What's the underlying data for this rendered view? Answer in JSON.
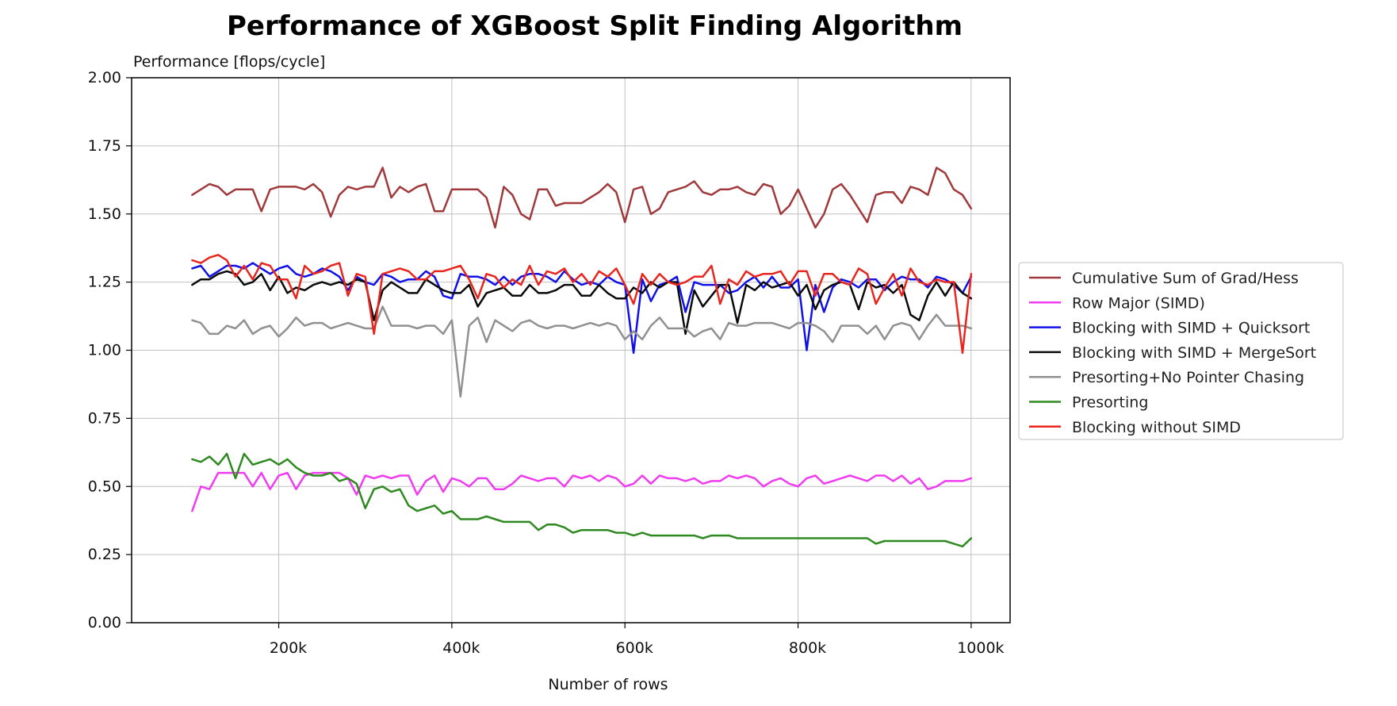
{
  "chart_data": {
    "type": "line",
    "title": "Performance of XGBoost Split Finding Algorithm",
    "ylabel": "Performance [flops/cycle]",
    "xlabel": "Number of rows",
    "xlim": [
      30000,
      1045000
    ],
    "ylim": [
      0,
      2
    ],
    "x_ticks": [
      200000,
      400000,
      600000,
      800000,
      1000000
    ],
    "x_tick_labels": [
      "200k",
      "400k",
      "600k",
      "800k",
      "1000k"
    ],
    "y_ticks": [
      0,
      0.25,
      0.5,
      0.75,
      1.0,
      1.25,
      1.5,
      1.75,
      2.0
    ],
    "y_tick_labels": [
      "0.00",
      "0.25",
      "0.50",
      "0.75",
      "1.00",
      "1.25",
      "1.50",
      "1.75",
      "2.00"
    ],
    "grid": true,
    "legend_position": "right",
    "x": [
      100000,
      110000,
      120000,
      130000,
      140000,
      150000,
      160000,
      170000,
      180000,
      190000,
      200000,
      210000,
      220000,
      230000,
      240000,
      250000,
      260000,
      270000,
      280000,
      290000,
      300000,
      310000,
      320000,
      330000,
      340000,
      350000,
      360000,
      370000,
      380000,
      390000,
      400000,
      410000,
      420000,
      430000,
      440000,
      450000,
      460000,
      470000,
      480000,
      490000,
      500000,
      510000,
      520000,
      530000,
      540000,
      550000,
      560000,
      570000,
      580000,
      590000,
      600000,
      610000,
      620000,
      630000,
      640000,
      650000,
      660000,
      670000,
      680000,
      690000,
      700000,
      710000,
      720000,
      730000,
      740000,
      750000,
      760000,
      770000,
      780000,
      790000,
      800000,
      810000,
      820000,
      830000,
      840000,
      850000,
      860000,
      870000,
      880000,
      890000,
      900000,
      910000,
      920000,
      930000,
      940000,
      950000,
      960000,
      970000,
      980000,
      990000,
      1000000
    ],
    "series": [
      {
        "name": "Cumulative Sum of Grad/Hess",
        "color": "#a0393b",
        "values": [
          1.57,
          1.59,
          1.61,
          1.6,
          1.57,
          1.59,
          1.59,
          1.59,
          1.51,
          1.59,
          1.6,
          1.6,
          1.6,
          1.59,
          1.61,
          1.58,
          1.49,
          1.57,
          1.6,
          1.59,
          1.6,
          1.6,
          1.67,
          1.56,
          1.6,
          1.58,
          1.6,
          1.61,
          1.51,
          1.51,
          1.59,
          1.59,
          1.59,
          1.59,
          1.56,
          1.45,
          1.6,
          1.57,
          1.5,
          1.48,
          1.59,
          1.59,
          1.53,
          1.54,
          1.54,
          1.54,
          1.56,
          1.58,
          1.61,
          1.58,
          1.47,
          1.59,
          1.6,
          1.5,
          1.52,
          1.58,
          1.59,
          1.6,
          1.62,
          1.58,
          1.57,
          1.59,
          1.59,
          1.6,
          1.58,
          1.57,
          1.61,
          1.6,
          1.5,
          1.53,
          1.59,
          1.52,
          1.45,
          1.5,
          1.59,
          1.61,
          1.57,
          1.52,
          1.47,
          1.57,
          1.58,
          1.58,
          1.54,
          1.6,
          1.59,
          1.57,
          1.67,
          1.65,
          1.59,
          1.57,
          1.52
        ]
      },
      {
        "name": "Row Major (SIMD)",
        "color": "#f03cf0",
        "values": [
          0.41,
          0.5,
          0.49,
          0.55,
          0.55,
          0.55,
          0.55,
          0.5,
          0.55,
          0.49,
          0.54,
          0.55,
          0.49,
          0.54,
          0.55,
          0.55,
          0.55,
          0.55,
          0.53,
          0.47,
          0.54,
          0.53,
          0.54,
          0.53,
          0.54,
          0.54,
          0.47,
          0.52,
          0.54,
          0.48,
          0.53,
          0.52,
          0.5,
          0.53,
          0.53,
          0.49,
          0.49,
          0.51,
          0.54,
          0.53,
          0.52,
          0.53,
          0.53,
          0.5,
          0.54,
          0.53,
          0.54,
          0.52,
          0.54,
          0.53,
          0.5,
          0.51,
          0.54,
          0.51,
          0.54,
          0.53,
          0.53,
          0.52,
          0.53,
          0.51,
          0.52,
          0.52,
          0.54,
          0.53,
          0.54,
          0.53,
          0.5,
          0.52,
          0.53,
          0.51,
          0.5,
          0.53,
          0.54,
          0.51,
          0.52,
          0.53,
          0.54,
          0.53,
          0.52,
          0.54,
          0.54,
          0.52,
          0.54,
          0.51,
          0.53,
          0.49,
          0.5,
          0.52,
          0.52,
          0.52,
          0.53
        ]
      },
      {
        "name": "Blocking with SIMD + Quicksort",
        "color": "#1010e8",
        "values": [
          1.3,
          1.31,
          1.27,
          1.29,
          1.31,
          1.31,
          1.3,
          1.32,
          1.3,
          1.28,
          1.3,
          1.31,
          1.28,
          1.27,
          1.28,
          1.3,
          1.29,
          1.27,
          1.22,
          1.27,
          1.25,
          1.24,
          1.28,
          1.27,
          1.25,
          1.26,
          1.26,
          1.29,
          1.27,
          1.2,
          1.19,
          1.28,
          1.27,
          1.27,
          1.26,
          1.24,
          1.27,
          1.24,
          1.27,
          1.28,
          1.28,
          1.27,
          1.25,
          1.29,
          1.26,
          1.24,
          1.25,
          1.24,
          1.27,
          1.25,
          1.24,
          0.99,
          1.26,
          1.18,
          1.24,
          1.25,
          1.27,
          1.14,
          1.25,
          1.24,
          1.24,
          1.24,
          1.21,
          1.22,
          1.25,
          1.27,
          1.23,
          1.27,
          1.23,
          1.23,
          1.26,
          1.0,
          1.24,
          1.14,
          1.23,
          1.26,
          1.25,
          1.23,
          1.26,
          1.26,
          1.22,
          1.25,
          1.27,
          1.26,
          1.26,
          1.23,
          1.27,
          1.26,
          1.24,
          1.21,
          1.27
        ]
      },
      {
        "name": "Blocking with SIMD + MergeSort",
        "color": "#0a0a0a",
        "values": [
          1.24,
          1.26,
          1.26,
          1.28,
          1.29,
          1.28,
          1.24,
          1.25,
          1.28,
          1.22,
          1.27,
          1.21,
          1.23,
          1.22,
          1.24,
          1.25,
          1.24,
          1.25,
          1.24,
          1.26,
          1.25,
          1.11,
          1.22,
          1.25,
          1.23,
          1.21,
          1.21,
          1.26,
          1.24,
          1.22,
          1.21,
          1.21,
          1.24,
          1.16,
          1.21,
          1.22,
          1.23,
          1.2,
          1.2,
          1.24,
          1.21,
          1.21,
          1.22,
          1.24,
          1.24,
          1.2,
          1.2,
          1.24,
          1.21,
          1.19,
          1.19,
          1.23,
          1.21,
          1.25,
          1.23,
          1.25,
          1.25,
          1.06,
          1.22,
          1.16,
          1.2,
          1.24,
          1.24,
          1.1,
          1.24,
          1.22,
          1.25,
          1.23,
          1.24,
          1.25,
          1.2,
          1.24,
          1.15,
          1.22,
          1.24,
          1.25,
          1.24,
          1.15,
          1.25,
          1.23,
          1.24,
          1.21,
          1.24,
          1.13,
          1.11,
          1.2,
          1.25,
          1.2,
          1.25,
          1.21,
          1.19
        ]
      },
      {
        "name": "Presorting+No Pointer Chasing",
        "color": "#909090",
        "values": [
          1.11,
          1.1,
          1.06,
          1.06,
          1.09,
          1.08,
          1.11,
          1.06,
          1.08,
          1.09,
          1.05,
          1.08,
          1.12,
          1.09,
          1.1,
          1.1,
          1.08,
          1.09,
          1.1,
          1.09,
          1.08,
          1.08,
          1.16,
          1.09,
          1.09,
          1.09,
          1.08,
          1.09,
          1.09,
          1.06,
          1.11,
          0.83,
          1.09,
          1.12,
          1.03,
          1.11,
          1.09,
          1.07,
          1.1,
          1.11,
          1.09,
          1.08,
          1.09,
          1.09,
          1.08,
          1.09,
          1.1,
          1.09,
          1.1,
          1.09,
          1.04,
          1.07,
          1.04,
          1.09,
          1.12,
          1.08,
          1.08,
          1.08,
          1.05,
          1.07,
          1.08,
          1.04,
          1.1,
          1.09,
          1.09,
          1.1,
          1.1,
          1.1,
          1.09,
          1.08,
          1.1,
          1.1,
          1.09,
          1.07,
          1.03,
          1.09,
          1.09,
          1.09,
          1.06,
          1.09,
          1.04,
          1.09,
          1.1,
          1.09,
          1.04,
          1.09,
          1.13,
          1.09,
          1.09,
          1.09,
          1.08
        ]
      },
      {
        "name": "Presorting",
        "color": "#2e8a20",
        "values": [
          0.6,
          0.59,
          0.61,
          0.58,
          0.62,
          0.53,
          0.62,
          0.58,
          0.59,
          0.6,
          0.58,
          0.6,
          0.57,
          0.55,
          0.54,
          0.54,
          0.55,
          0.52,
          0.53,
          0.51,
          0.42,
          0.49,
          0.5,
          0.48,
          0.49,
          0.43,
          0.41,
          0.42,
          0.43,
          0.4,
          0.41,
          0.38,
          0.38,
          0.38,
          0.39,
          0.38,
          0.37,
          0.37,
          0.37,
          0.37,
          0.34,
          0.36,
          0.36,
          0.35,
          0.33,
          0.34,
          0.34,
          0.34,
          0.34,
          0.33,
          0.33,
          0.32,
          0.33,
          0.32,
          0.32,
          0.32,
          0.32,
          0.32,
          0.32,
          0.31,
          0.32,
          0.32,
          0.32,
          0.31,
          0.31,
          0.31,
          0.31,
          0.31,
          0.31,
          0.31,
          0.31,
          0.31,
          0.31,
          0.31,
          0.31,
          0.31,
          0.31,
          0.31,
          0.31,
          0.29,
          0.3,
          0.3,
          0.3,
          0.3,
          0.3,
          0.3,
          0.3,
          0.3,
          0.29,
          0.28,
          0.31
        ]
      },
      {
        "name": "Blocking without SIMD",
        "color": "#e8261e",
        "values": [
          1.33,
          1.32,
          1.34,
          1.35,
          1.33,
          1.27,
          1.31,
          1.26,
          1.32,
          1.31,
          1.26,
          1.26,
          1.19,
          1.31,
          1.28,
          1.29,
          1.31,
          1.32,
          1.2,
          1.28,
          1.27,
          1.06,
          1.28,
          1.29,
          1.3,
          1.29,
          1.26,
          1.26,
          1.29,
          1.29,
          1.3,
          1.31,
          1.26,
          1.19,
          1.28,
          1.27,
          1.23,
          1.26,
          1.24,
          1.31,
          1.24,
          1.29,
          1.28,
          1.3,
          1.25,
          1.28,
          1.24,
          1.29,
          1.27,
          1.3,
          1.24,
          1.17,
          1.28,
          1.24,
          1.28,
          1.25,
          1.24,
          1.25,
          1.27,
          1.27,
          1.31,
          1.17,
          1.26,
          1.24,
          1.29,
          1.27,
          1.28,
          1.28,
          1.29,
          1.24,
          1.29,
          1.29,
          1.2,
          1.28,
          1.28,
          1.25,
          1.24,
          1.3,
          1.28,
          1.17,
          1.23,
          1.28,
          1.2,
          1.3,
          1.25,
          1.24,
          1.26,
          1.25,
          1.25,
          0.99,
          1.28
        ]
      }
    ]
  }
}
